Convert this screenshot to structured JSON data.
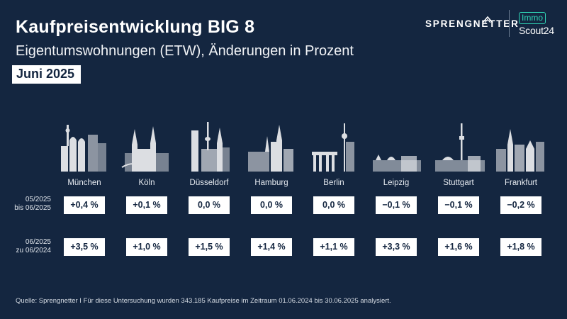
{
  "header": {
    "title": "Kaufpreisentwicklung BIG 8",
    "subtitle": "Eigentumswohnungen (ETW), Änderungen in Prozent",
    "date": "Juni 2025"
  },
  "brand": {
    "sprengnetter": "SPRENGNETTER",
    "immoscout_top": "Immo",
    "immoscout_bottom": "Scout24",
    "accent_color": "#2fd5b5",
    "background_color": "#142640"
  },
  "row_labels": {
    "monthly": [
      "05/2025",
      "bis 06/2025"
    ],
    "yearly": [
      "06/2025",
      "zu 06/2024"
    ]
  },
  "cities": [
    {
      "name": "München",
      "icon": "munich-skyline-icon",
      "monthly": "+0,4 %",
      "yearly": "+3,5 %"
    },
    {
      "name": "Köln",
      "icon": "cologne-skyline-icon",
      "monthly": "+0,1 %",
      "yearly": "+1,0 %"
    },
    {
      "name": "Düsseldorf",
      "icon": "dusseldorf-skyline-icon",
      "monthly": "0,0 %",
      "yearly": "+1,5 %"
    },
    {
      "name": "Hamburg",
      "icon": "hamburg-skyline-icon",
      "monthly": "0,0 %",
      "yearly": "+1,4 %"
    },
    {
      "name": "Berlin",
      "icon": "berlin-skyline-icon",
      "monthly": "0,0 %",
      "yearly": "+1,1 %"
    },
    {
      "name": "Leipzig",
      "icon": "leipzig-skyline-icon",
      "monthly": "−0,1 %",
      "yearly": "+3,3 %"
    },
    {
      "name": "Stuttgart",
      "icon": "stuttgart-skyline-icon",
      "monthly": "−0,1 %",
      "yearly": "+1,6 %"
    },
    {
      "name": "Frankfurt",
      "icon": "frankfurt-skyline-icon",
      "monthly": "−0,2 %",
      "yearly": "+1,8 %"
    }
  ],
  "footnote": "Quelle: Sprengnetter I Für diese Untersuchung wurden 343.185 Kaufpreise im Zeitraum 01.06.2024 bis 30.06.2025 analysiert."
}
